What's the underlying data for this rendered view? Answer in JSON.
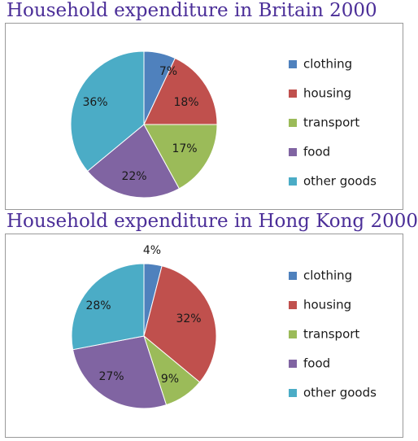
{
  "charts": [
    {
      "title": "Household expenditure in Britain 2000"
    },
    {
      "title": "Household expenditure in Hong Kong 2000"
    }
  ],
  "chart_data": [
    {
      "type": "pie",
      "title": "Household expenditure in Britain 2000",
      "categories": [
        "clothing",
        "housing",
        "transport",
        "food",
        "other goods"
      ],
      "values": [
        7,
        18,
        17,
        22,
        36
      ],
      "value_labels": [
        "7%",
        "18%",
        "17%",
        "22%",
        "36%"
      ],
      "colors": [
        "#4f81bd",
        "#c0504d",
        "#9bbb59",
        "#8064a2",
        "#4bacc6"
      ],
      "legend": "right"
    },
    {
      "type": "pie",
      "title": "Household expenditure in Hong Kong 2000",
      "categories": [
        "clothing",
        "housing",
        "transport",
        "food",
        "other goods"
      ],
      "values": [
        4,
        32,
        9,
        27,
        28
      ],
      "value_labels": [
        "4%",
        "32%",
        "9%",
        "27%",
        "28%"
      ],
      "colors": [
        "#4f81bd",
        "#c0504d",
        "#9bbb59",
        "#8064a2",
        "#4bacc6"
      ],
      "legend": "right"
    }
  ]
}
